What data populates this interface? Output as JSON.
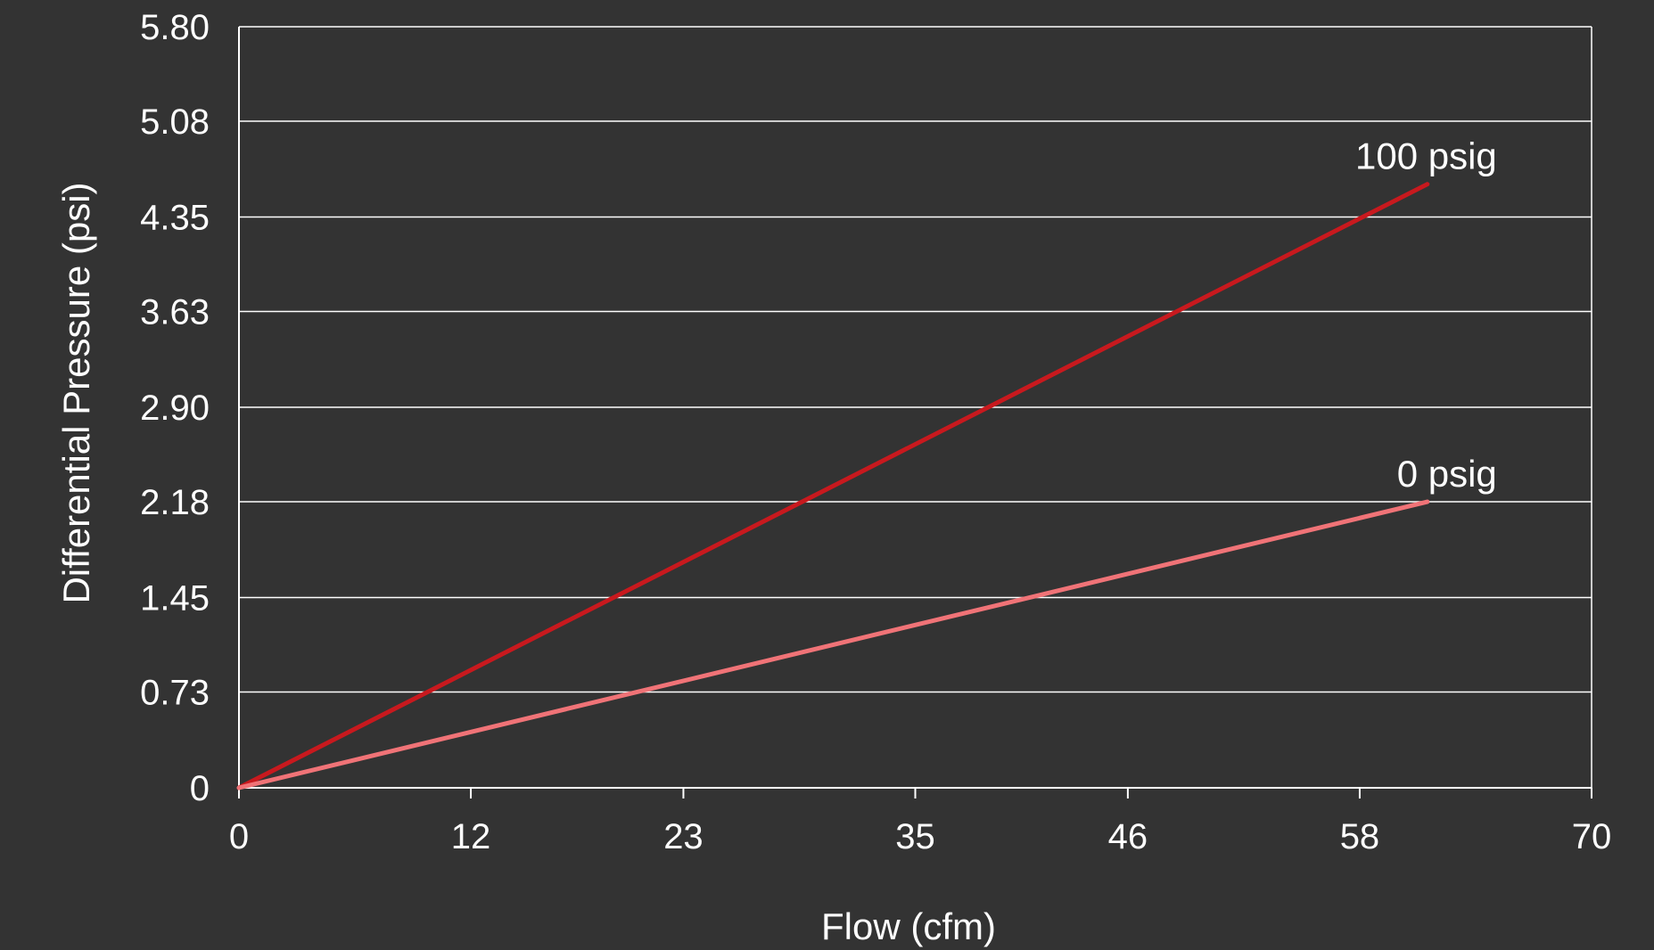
{
  "chart_data": {
    "type": "line",
    "xlabel": "Flow (cfm)",
    "ylabel": "Differential Pressure (psi)",
    "xlim": [
      0,
      70
    ],
    "ylim": [
      0,
      5.8
    ],
    "x_ticks": [
      "0",
      "12",
      "23",
      "35",
      "46",
      "58",
      "70"
    ],
    "y_ticks": [
      "0",
      "0.73",
      "1.45",
      "2.18",
      "2.90",
      "3.63",
      "4.35",
      "5.08",
      "5.80"
    ],
    "grid": "horizontal",
    "background": "#333333",
    "series": [
      {
        "name": "100 psig",
        "color": "#c8191e",
        "x": [
          0,
          61.5
        ],
        "y": [
          0,
          4.6
        ]
      },
      {
        "name": "0 psig",
        "color": "#f07377",
        "x": [
          0,
          61.5
        ],
        "y": [
          0,
          2.18
        ]
      }
    ]
  }
}
